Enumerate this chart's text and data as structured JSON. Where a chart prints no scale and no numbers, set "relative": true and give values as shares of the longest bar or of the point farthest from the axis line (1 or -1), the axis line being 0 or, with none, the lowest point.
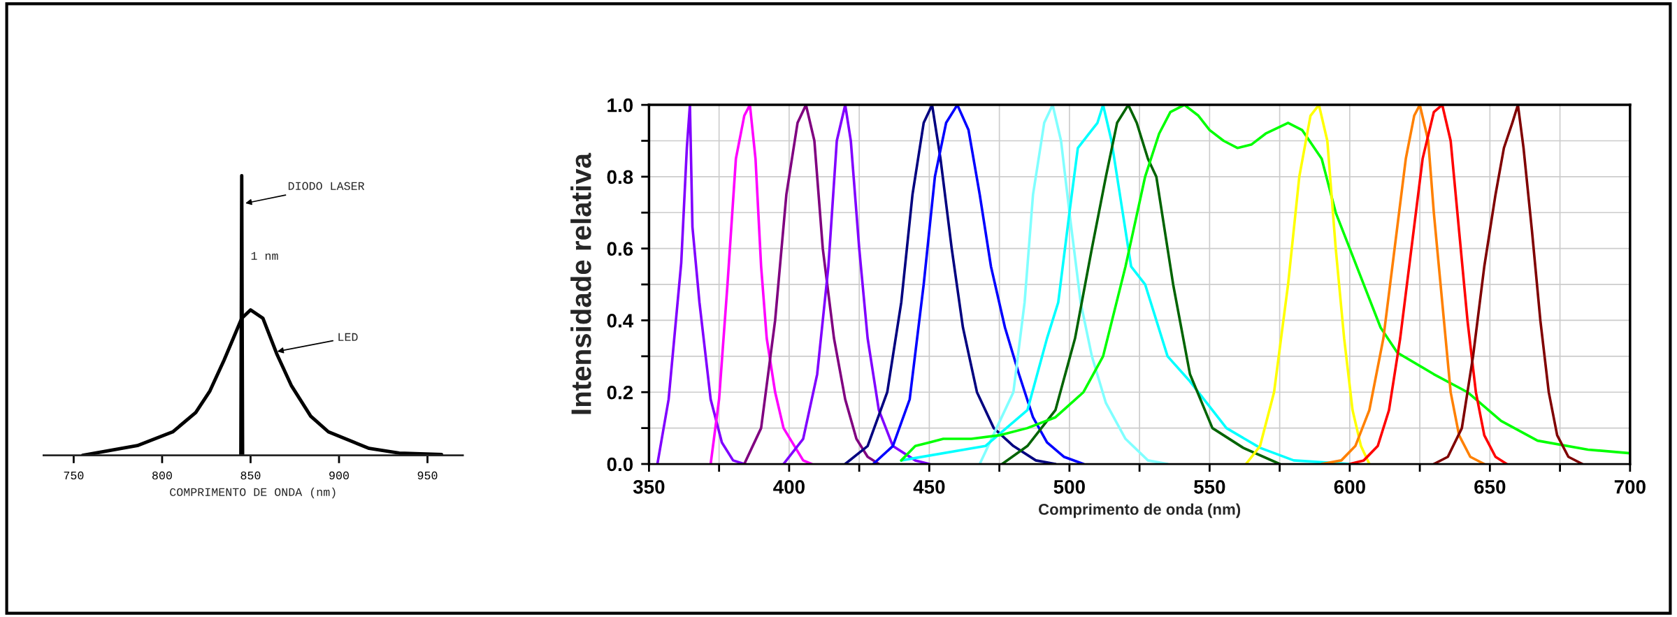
{
  "chart_data": [
    {
      "type": "line",
      "relative": true,
      "xlabel": "COMPRIMENTO DE ONDA (nm)",
      "xlim": [
        733,
        970
      ],
      "xticks": [
        750,
        800,
        850,
        900,
        950
      ],
      "tick_labels": "x",
      "grid": false,
      "legend": false,
      "annotations": [
        {
          "text": "DIODO LASER",
          "x": 846,
          "y": 0.9
        },
        {
          "text": "1 nm",
          "x": 847,
          "y": 0.71
        },
        {
          "text": "LED",
          "x": 864,
          "y": 0.37
        }
      ],
      "series": [
        {
          "color": "#000000",
          "x": [
            755,
            786,
            806,
            819,
            827,
            835,
            845,
            850,
            857,
            865,
            873,
            884,
            894,
            917,
            934,
            958
          ],
          "values": [
            0,
            0.035,
            0.084,
            0.153,
            0.23,
            0.34,
            0.49,
            0.52,
            0.49,
            0.36,
            0.25,
            0.14,
            0.084,
            0.025,
            0.008,
            0.003
          ]
        },
        {
          "color": "#000000",
          "x": [
            844.5,
            845,
            845.5
          ],
          "values": [
            0,
            1,
            0
          ]
        }
      ]
    },
    {
      "type": "line",
      "xlabel": "Comprimento de onda (nm)",
      "ylabel": "Intensidade relativa",
      "xlim": [
        350,
        700
      ],
      "ylim": [
        0,
        1.0
      ],
      "xticks": [
        350,
        {
          "value": 375,
          "label": null
        },
        400,
        {
          "value": 425,
          "label": null
        },
        450,
        {
          "value": 475,
          "label": null
        },
        500,
        {
          "value": 525,
          "label": null
        },
        550,
        {
          "value": 575,
          "label": null
        },
        600,
        {
          "value": 625,
          "label": null
        },
        650,
        {
          "value": 675,
          "label": null
        },
        700
      ],
      "yticks": [
        {
          "value": 0,
          "label": "0.0"
        },
        {
          "value": 0.1,
          "label": null
        },
        0.2,
        {
          "value": 0.3,
          "label": null
        },
        0.4,
        {
          "value": 0.5,
          "label": null
        },
        0.6,
        {
          "value": 0.7,
          "label": null
        },
        0.8,
        {
          "value": 0.9,
          "label": null
        },
        {
          "value": 1.0,
          "label": "1.0"
        }
      ],
      "grid": true,
      "legend": false,
      "series": [
        {
          "color": "#8000ff",
          "x": [
            353,
            357,
            361.5,
            363.5,
            364.6,
            365.5,
            368,
            372,
            376,
            380,
            384
          ],
          "values": [
            0,
            0.18,
            0.56,
            0.88,
            1.0,
            0.66,
            0.45,
            0.18,
            0.06,
            0.01,
            0
          ]
        },
        {
          "color": "#ff00ff",
          "x": [
            372,
            375,
            378,
            381,
            384,
            386,
            388,
            390,
            392,
            395,
            398,
            405,
            408
          ],
          "values": [
            0,
            0.18,
            0.5,
            0.85,
            0.97,
            1.0,
            0.85,
            0.55,
            0.35,
            0.2,
            0.1,
            0.01,
            0
          ]
        },
        {
          "color": "#800080",
          "x": [
            384,
            390,
            395,
            399,
            403,
            406,
            409,
            412,
            416,
            420,
            424,
            428,
            432
          ],
          "values": [
            0,
            0.1,
            0.4,
            0.75,
            0.95,
            1.0,
            0.9,
            0.6,
            0.35,
            0.18,
            0.07,
            0.02,
            0
          ]
        },
        {
          "color": "#8000ff",
          "x": [
            398,
            405,
            410,
            414,
            417,
            420,
            422,
            425,
            428,
            432,
            437,
            445,
            450
          ],
          "values": [
            0,
            0.07,
            0.25,
            0.55,
            0.9,
            1.0,
            0.9,
            0.6,
            0.35,
            0.15,
            0.05,
            0.01,
            0
          ]
        },
        {
          "color": "#000080",
          "x": [
            420,
            428,
            435,
            440,
            444,
            448,
            451,
            454,
            458,
            462,
            467,
            473,
            480,
            488,
            495
          ],
          "values": [
            0,
            0.05,
            0.2,
            0.45,
            0.75,
            0.95,
            1.0,
            0.85,
            0.6,
            0.38,
            0.2,
            0.1,
            0.05,
            0.01,
            0
          ]
        },
        {
          "color": "#0000ff",
          "x": [
            430,
            437,
            443,
            448,
            452,
            456,
            460,
            464,
            468,
            472,
            477,
            482,
            487,
            492,
            498,
            505
          ],
          "values": [
            0,
            0.05,
            0.18,
            0.5,
            0.8,
            0.95,
            1.0,
            0.93,
            0.75,
            0.55,
            0.38,
            0.25,
            0.13,
            0.06,
            0.02,
            0
          ]
        },
        {
          "color": "#80ffff",
          "x": [
            468,
            474,
            480,
            484,
            487,
            491,
            494,
            497,
            500,
            504,
            508,
            513,
            520,
            528,
            535
          ],
          "values": [
            0,
            0.1,
            0.2,
            0.45,
            0.75,
            0.95,
            1.0,
            0.9,
            0.7,
            0.45,
            0.3,
            0.17,
            0.07,
            0.01,
            0
          ]
        },
        {
          "color": "#00ffff",
          "x": [
            440,
            470,
            485,
            492,
            496,
            500,
            503,
            507,
            510,
            512,
            515,
            519,
            522,
            527,
            535,
            543,
            556,
            568,
            580,
            600
          ],
          "values": [
            0.01,
            0.05,
            0.15,
            0.35,
            0.45,
            0.7,
            0.88,
            0.92,
            0.95,
            1.0,
            0.9,
            0.7,
            0.55,
            0.5,
            0.3,
            0.23,
            0.1,
            0.045,
            0.01,
            0
          ]
        },
        {
          "color": "#006400",
          "x": [
            476,
            485,
            495,
            502,
            508,
            513,
            517,
            521,
            524,
            528,
            531,
            537,
            543,
            551,
            562,
            575
          ],
          "values": [
            0,
            0.05,
            0.15,
            0.35,
            0.6,
            0.8,
            0.95,
            1.0,
            0.95,
            0.85,
            0.8,
            0.5,
            0.25,
            0.1,
            0.045,
            0
          ]
        },
        {
          "color": "#00ff00",
          "x": [
            440,
            445,
            450,
            455,
            465,
            475,
            485,
            495,
            505,
            512,
            520,
            527,
            532,
            536,
            541,
            546,
            550,
            555,
            560,
            565,
            570,
            578,
            583,
            590,
            595,
            600,
            605,
            611,
            617,
            630,
            642,
            654,
            667,
            685,
            700
          ],
          "values": [
            0.01,
            0.05,
            0.06,
            0.07,
            0.07,
            0.08,
            0.1,
            0.13,
            0.2,
            0.3,
            0.55,
            0.8,
            0.92,
            0.98,
            1.0,
            0.97,
            0.93,
            0.9,
            0.88,
            0.89,
            0.92,
            0.95,
            0.93,
            0.85,
            0.7,
            0.6,
            0.5,
            0.38,
            0.31,
            0.25,
            0.2,
            0.12,
            0.065,
            0.04,
            0.03
          ]
        },
        {
          "color": "#ffff00",
          "x": [
            563,
            568,
            573,
            578,
            582,
            586,
            589,
            592,
            595,
            598,
            601,
            604,
            607
          ],
          "values": [
            0,
            0.05,
            0.2,
            0.5,
            0.8,
            0.97,
            1.0,
            0.9,
            0.6,
            0.35,
            0.15,
            0.05,
            0
          ]
        },
        {
          "color": "#ff8000",
          "x": [
            590,
            597,
            602,
            607,
            612,
            616,
            620,
            623,
            625,
            628,
            630,
            633,
            636,
            639,
            643,
            648
          ],
          "values": [
            0,
            0.01,
            0.05,
            0.15,
            0.35,
            0.6,
            0.85,
            0.97,
            1.0,
            0.9,
            0.7,
            0.45,
            0.2,
            0.08,
            0.02,
            0
          ]
        },
        {
          "color": "#ff0000",
          "x": [
            600,
            605,
            610,
            614,
            618,
            622,
            626,
            630,
            633,
            636,
            639,
            642,
            645,
            648,
            652,
            656
          ],
          "values": [
            0,
            0.01,
            0.05,
            0.15,
            0.35,
            0.6,
            0.85,
            0.98,
            1.0,
            0.9,
            0.65,
            0.4,
            0.2,
            0.08,
            0.02,
            0
          ]
        },
        {
          "color": "#800000",
          "x": [
            630,
            635,
            640,
            644,
            648,
            652,
            655,
            658,
            660,
            662,
            665,
            668,
            671,
            674,
            678,
            683
          ],
          "values": [
            0,
            0.02,
            0.1,
            0.3,
            0.55,
            0.75,
            0.88,
            0.95,
            1.0,
            0.88,
            0.65,
            0.4,
            0.2,
            0.08,
            0.02,
            0
          ]
        }
      ]
    }
  ]
}
